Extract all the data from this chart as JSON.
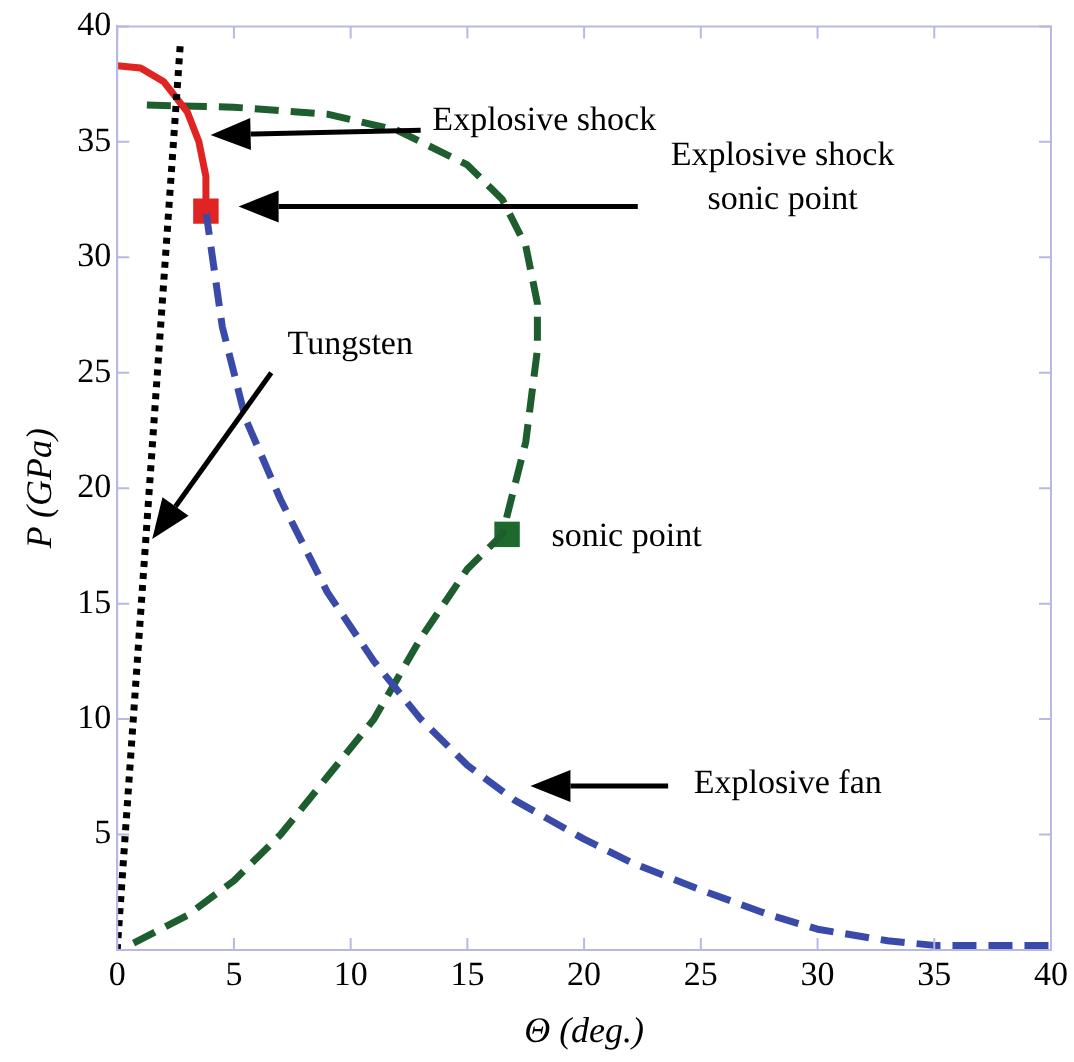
{
  "chart_data": {
    "type": "line",
    "xlabel": "Θ (deg.)",
    "ylabel": "P (GPa)",
    "xlim": [
      0,
      40
    ],
    "ylim": [
      0,
      40
    ],
    "xticks": [
      0,
      5,
      10,
      15,
      20,
      25,
      30,
      35,
      40
    ],
    "yticks": [
      5,
      10,
      15,
      20,
      25,
      30,
      35,
      40
    ],
    "grid": false,
    "legend": false,
    "marker": "none",
    "series": [
      {
        "color": "#000000",
        "line_style": "dotted",
        "x": [
          0,
          2.7
        ],
        "values": [
          0,
          39.2
        ]
      },
      {
        "color": "#e02424",
        "line_style": "solid",
        "x": [
          0,
          1,
          2,
          3,
          3.5,
          3.8,
          3.8
        ],
        "values": [
          38.3,
          38.2,
          37.6,
          36.3,
          35,
          33.5,
          32
        ]
      },
      {
        "color": "#3a4aa8",
        "line_style": "dashed",
        "x": [
          3.8,
          4.5,
          5.5,
          7,
          9,
          11,
          13,
          15,
          17,
          20,
          22,
          25,
          28,
          30,
          33,
          35,
          40
        ],
        "values": [
          32,
          27,
          23,
          19.5,
          15.5,
          12.5,
          10,
          8,
          6.5,
          4.8,
          3.8,
          2.6,
          1.5,
          0.9,
          0.4,
          0.2,
          0.2
        ]
      },
      {
        "color": "#1e5e2e",
        "line_style": "dashed",
        "x": [
          0.7,
          3,
          5,
          7,
          9,
          11,
          13,
          15,
          16.5,
          17.5,
          18,
          18,
          17.5,
          16.5,
          15,
          12,
          9,
          5,
          1
        ],
        "values": [
          0.3,
          1.5,
          3,
          5,
          7.5,
          10,
          13.5,
          16.5,
          18,
          22,
          26,
          28,
          30.5,
          32.5,
          34,
          35.5,
          36.2,
          36.5,
          36.6
        ]
      },
      {
        "type": "scatter",
        "color": "#e02424",
        "marker": "square",
        "x": [
          3.8
        ],
        "values": [
          32
        ]
      },
      {
        "type": "scatter",
        "color": "#1e6a2e",
        "marker": "square",
        "x": [
          16.7
        ],
        "values": [
          18
        ]
      }
    ],
    "annotations": [
      "Explosive shock",
      "Explosive shock sonic point",
      "Tungsten",
      "sonic point",
      "Explosive fan"
    ]
  }
}
